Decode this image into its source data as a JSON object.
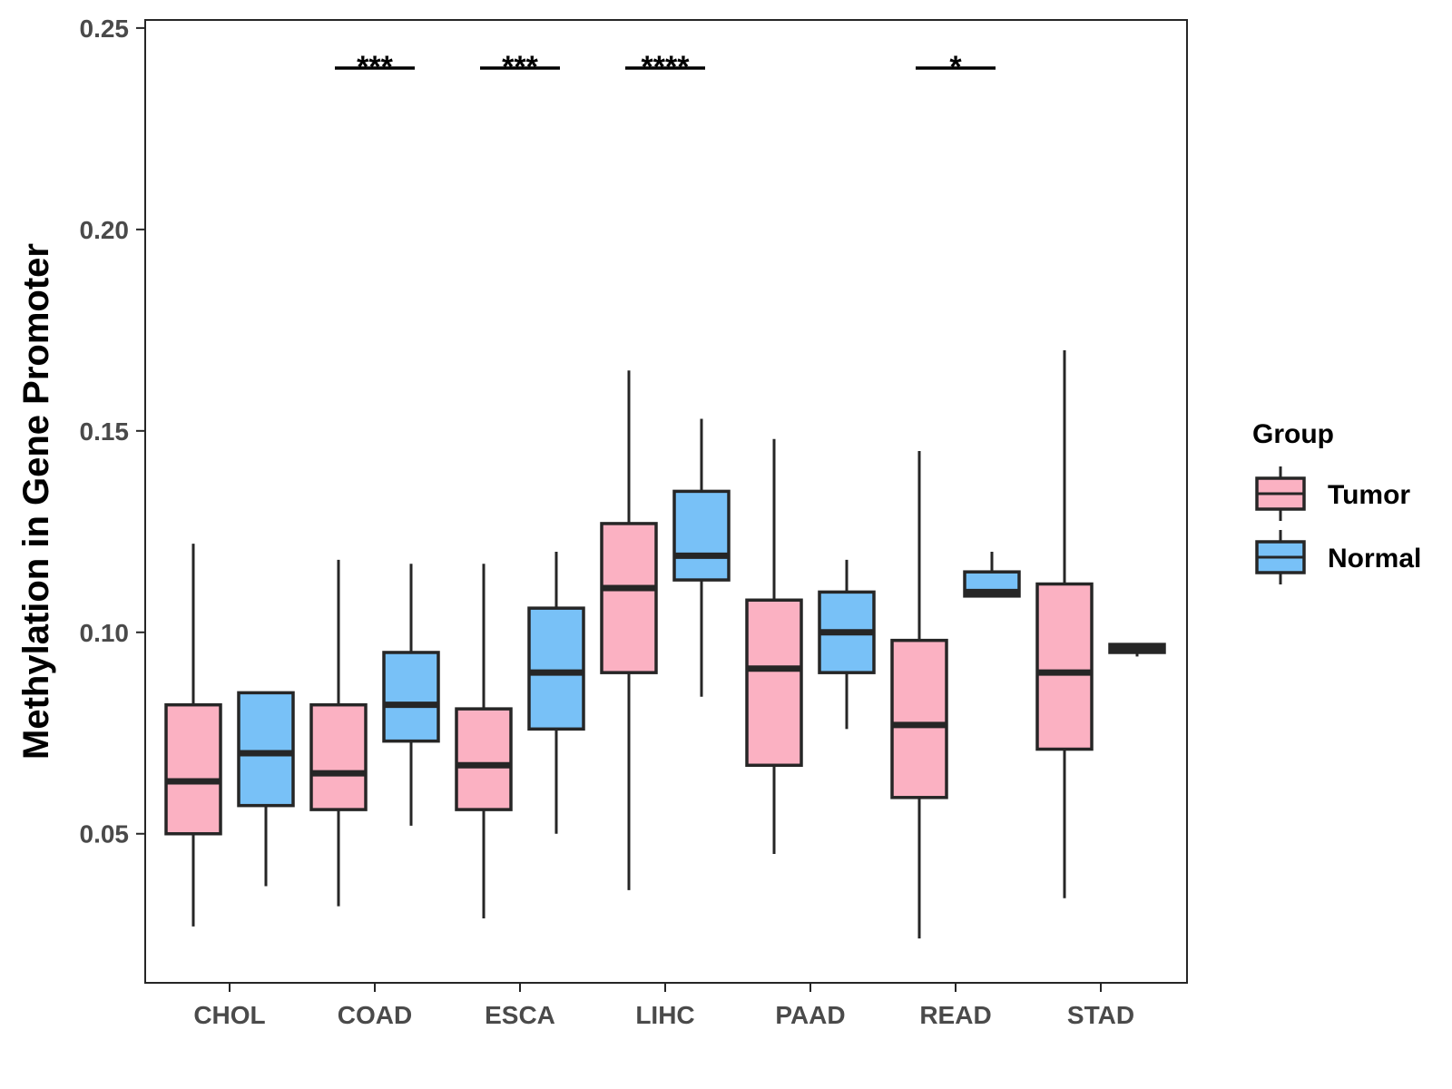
{
  "chart_data": {
    "type": "boxplot",
    "title": "",
    "xlabel": "",
    "ylabel": "Methylation in Gene Promoter",
    "ylim": [
      0.013,
      0.252
    ],
    "yticks": [
      "0.05",
      "0.10",
      "0.15",
      "0.20",
      "0.25"
    ],
    "grid": false,
    "legend": {
      "title": "Group",
      "position": "right",
      "entries": [
        {
          "name": "Tumor",
          "color": "#fbb1c2"
        },
        {
          "name": "Normal",
          "color": "#78c1f7"
        }
      ]
    },
    "categories": [
      "CHOL",
      "COAD",
      "ESCA",
      "LIHC",
      "PAAD",
      "READ",
      "STAD"
    ],
    "series": [
      {
        "name": "Tumor",
        "color": "#fbb1c2",
        "boxes": [
          {
            "min": 0.027,
            "q1": 0.05,
            "median": 0.063,
            "q3": 0.082,
            "max": 0.122
          },
          {
            "min": 0.032,
            "q1": 0.056,
            "median": 0.065,
            "q3": 0.082,
            "max": 0.118
          },
          {
            "min": 0.029,
            "q1": 0.056,
            "median": 0.067,
            "q3": 0.081,
            "max": 0.117
          },
          {
            "min": 0.036,
            "q1": 0.09,
            "median": 0.111,
            "q3": 0.127,
            "max": 0.165
          },
          {
            "min": 0.045,
            "q1": 0.067,
            "median": 0.091,
            "q3": 0.108,
            "max": 0.148
          },
          {
            "min": 0.024,
            "q1": 0.059,
            "median": 0.077,
            "q3": 0.098,
            "max": 0.145
          },
          {
            "min": 0.034,
            "q1": 0.071,
            "median": 0.09,
            "q3": 0.112,
            "max": 0.17
          }
        ]
      },
      {
        "name": "Normal",
        "color": "#78c1f7",
        "boxes": [
          {
            "min": 0.037,
            "q1": 0.057,
            "median": 0.07,
            "q3": 0.085,
            "max": 0.085
          },
          {
            "min": 0.052,
            "q1": 0.073,
            "median": 0.082,
            "q3": 0.095,
            "max": 0.117
          },
          {
            "min": 0.05,
            "q1": 0.076,
            "median": 0.09,
            "q3": 0.106,
            "max": 0.12
          },
          {
            "min": 0.084,
            "q1": 0.113,
            "median": 0.119,
            "q3": 0.135,
            "max": 0.153
          },
          {
            "min": 0.076,
            "q1": 0.09,
            "median": 0.1,
            "q3": 0.11,
            "max": 0.118
          },
          {
            "min": 0.109,
            "q1": 0.109,
            "median": 0.11,
            "q3": 0.115,
            "max": 0.12
          },
          {
            "min": 0.094,
            "q1": 0.095,
            "median": 0.096,
            "q3": 0.097,
            "max": 0.097
          }
        ]
      }
    ],
    "significance": [
      {
        "category": "COAD",
        "label": "***"
      },
      {
        "category": "ESCA",
        "label": "***"
      },
      {
        "category": "LIHC",
        "label": "****"
      },
      {
        "category": "READ",
        "label": "*"
      }
    ]
  }
}
